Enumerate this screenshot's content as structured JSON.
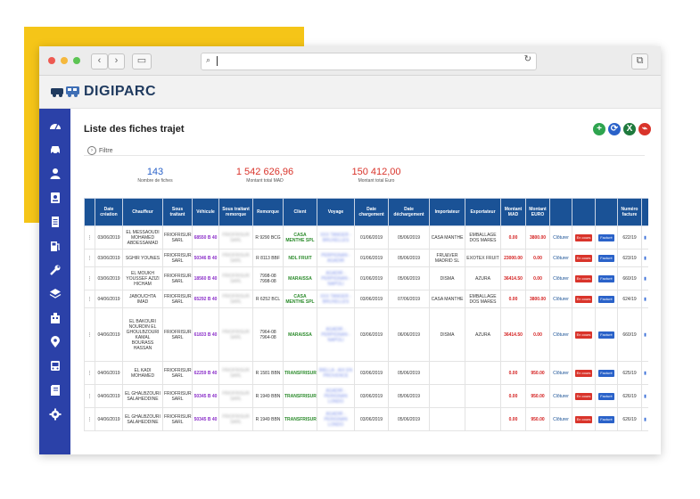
{
  "app": {
    "brand": "DIGIPARC"
  },
  "page": {
    "title": "Liste des fiches trajet",
    "filter_label": "Filtre"
  },
  "stats": [
    {
      "value": "143",
      "label": "Nombre de fiches",
      "color": "#2a62c9"
    },
    {
      "value": "1 542 626,96",
      "label": "Montant total MAD",
      "color": "#d9342b"
    },
    {
      "value": "150 412,00",
      "label": "Montant total Euro",
      "color": "#d9342b"
    }
  ],
  "actions": [
    {
      "icon": "plus-icon",
      "glyph": "+",
      "color": "#2ea44f"
    },
    {
      "icon": "refresh-icon",
      "glyph": "⟳",
      "color": "#2a62c9"
    },
    {
      "icon": "excel-icon",
      "glyph": "X",
      "color": "#1f7a3d"
    },
    {
      "icon": "pdf-icon",
      "glyph": "⌁",
      "color": "#d9342b"
    }
  ],
  "sidebar": [
    {
      "icon": "dashboard-icon"
    },
    {
      "icon": "car-icon"
    },
    {
      "icon": "user-icon"
    },
    {
      "icon": "id-card-icon"
    },
    {
      "icon": "document-icon"
    },
    {
      "icon": "fuel-icon"
    },
    {
      "icon": "wrench-icon"
    },
    {
      "icon": "layers-icon"
    },
    {
      "icon": "building-icon"
    },
    {
      "icon": "location-icon"
    },
    {
      "icon": "bus-icon"
    },
    {
      "icon": "book-icon"
    },
    {
      "icon": "gear-icon"
    }
  ],
  "table": {
    "headers": [
      "",
      "Date création",
      "Chauffeur",
      "Sous traitant",
      "Véhicule",
      "Sous traitant remorque",
      "Remorque",
      "Client",
      "Voyage",
      "Date chargement",
      "Date déchargement",
      "Importateur",
      "Exportateur",
      "Montant MAD",
      "Montant EURO",
      "",
      "",
      "",
      "Numéro facture",
      ""
    ],
    "action_label": "Clôturer",
    "status_label": "En cours",
    "invoice_label": "Facturé",
    "rows": [
      {
        "date": "03/06/2019",
        "chauffeur": "EL MESSAOUDI MOHAMED ABDESSAMAD",
        "sous_traitant": "FRIOFRISUR SARL",
        "vehicule": "68550 B 40",
        "st_remorque": "FRIOFRISUR SARL",
        "remorque": "R 9290 BCG",
        "client": "CASA MENTHE SPL",
        "voyage": "XXX TANGER - BRUXELLES",
        "date_charg": "01/06/2019",
        "date_dech": "05/06/2019",
        "importateur": "CASA MANTHE",
        "exportateur": "EMBALLAGE DOS MARES",
        "mad": "0.00",
        "euro": "3800.00",
        "facture": "622/19"
      },
      {
        "date": "03/06/2019",
        "chauffeur": "SGHIR YOUNES",
        "sous_traitant": "FRIOFRISUR SARL",
        "vehicule": "50346 B 40",
        "st_remorque": "FRIOFRISUR SARL",
        "remorque": "R 8113 BBF",
        "client": "NDL FRUIT",
        "voyage": "PERPIGNAN - AGADIR",
        "date_charg": "01/06/2019",
        "date_dech": "05/06/2019",
        "importateur": "FRU&VER MADRID SL",
        "exportateur": "EXOTEX FRUIT",
        "mad": "23000.00",
        "euro": "0.00",
        "facture": "623/19"
      },
      {
        "date": "03/06/2019",
        "chauffeur": "EL MOUKH YOUSSEF AZIZI HICHAM",
        "sous_traitant": "FRIOFRISUR SARL",
        "vehicule": "18560 B 40",
        "st_remorque": "FRIOFRISUR SARL",
        "remorque": "7998-08 7998-08",
        "client": "MARAISSA",
        "voyage": "AGADIR - PERPIGNAN - NAPOLI",
        "date_charg": "01/06/2019",
        "date_dech": "05/06/2019",
        "importateur": "DISMA",
        "exportateur": "AZURA",
        "mad": "36414.50",
        "euro": "0.00",
        "facture": "660/19"
      },
      {
        "date": "04/06/2019",
        "chauffeur": "JABOUCHTA IMAD",
        "sous_traitant": "FRIOFRISUR SARL",
        "vehicule": "65292 B 40",
        "st_remorque": "FRIOFRISUR SARL",
        "remorque": "R 6252 BCL",
        "client": "CASA MENTHE SPL",
        "voyage": "XXX TANGER - BRUXELLES",
        "date_charg": "03/06/2019",
        "date_dech": "07/06/2019",
        "importateur": "CASA MANTHE",
        "exportateur": "EMBALLAGE DOS MARES",
        "mad": "0.00",
        "euro": "3800.00",
        "facture": "624/19"
      },
      {
        "date": "04/06/2019",
        "chauffeur": "EL BAKOURI NOURDIN EL GHOULBZOURI KAMAL BOURASS HASSAN",
        "sous_traitant": "FRIOFRISUR SARL",
        "vehicule": "61833 B 40",
        "st_remorque": "FRIOFRISUR SARL",
        "remorque": "7964-08 7964-08",
        "client": "MARAISSA",
        "voyage": "AGADIR - PERPIGNAN - NAPOLI",
        "date_charg": "03/06/2019",
        "date_dech": "06/06/2019",
        "importateur": "DISMA",
        "exportateur": "AZURA",
        "mad": "36414.50",
        "euro": "0.00",
        "facture": "660/19"
      },
      {
        "date": "04/06/2019",
        "chauffeur": "EL KADI MOHAMED",
        "sous_traitant": "FRIOFRISUR SARL",
        "vehicule": "62259 B 40",
        "st_remorque": "FRIOFRISUR SARL",
        "remorque": "R 1581 BBN",
        "client": "TRANSFRISUR",
        "voyage": "BIELLA - AIX EN PROVENCE",
        "date_charg": "03/06/2019",
        "date_dech": "05/06/2019",
        "importateur": "",
        "exportateur": "",
        "mad": "0.00",
        "euro": "950.00",
        "facture": "625/19"
      },
      {
        "date": "04/06/2019",
        "chauffeur": "EL GHALBZOURI SALAHEDDINE",
        "sous_traitant": "FRIOFRISUR SARL",
        "vehicule": "50345 B 40",
        "st_remorque": "FRIOFRISUR SARL",
        "remorque": "R 1949 BBN",
        "client": "TRANSFRISUR",
        "voyage": "AGADIR - PERIGNAN LONDO",
        "date_charg": "03/06/2019",
        "date_dech": "05/06/2019",
        "importateur": "",
        "exportateur": "",
        "mad": "0.00",
        "euro": "950.00",
        "facture": "626/19"
      },
      {
        "date": "04/06/2019",
        "chauffeur": "EL GHALBZOURI SALAHEDDINE",
        "sous_traitant": "FRIOFRISUR SARL",
        "vehicule": "50345 B 40",
        "st_remorque": "FRIOFRISUR SARL",
        "remorque": "R 1949 BBN",
        "client": "TRANSFRISUR",
        "voyage": "AGADIR - PERIGNAN LONDO",
        "date_charg": "03/06/2019",
        "date_dech": "05/06/2019",
        "importateur": "",
        "exportateur": "",
        "mad": "0.00",
        "euro": "950.00",
        "facture": "626/19"
      }
    ]
  }
}
